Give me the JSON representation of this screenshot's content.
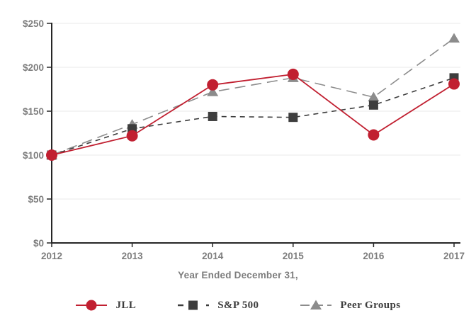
{
  "chart_data": {
    "type": "line",
    "title": "",
    "xlabel": "Year Ended December 31,",
    "ylabel": "",
    "categories": [
      "2012",
      "2013",
      "2014",
      "2015",
      "2016",
      "2017"
    ],
    "series": [
      {
        "name": "JLL",
        "values": [
          100,
          122,
          180,
          192,
          123,
          181
        ],
        "color": "#c12031",
        "marker": "circle",
        "dash": "solid"
      },
      {
        "name": "S&P 500",
        "values": [
          100,
          130,
          144,
          143,
          157,
          188
        ],
        "color": "#3d3d3d",
        "marker": "square",
        "dash": "short-dash"
      },
      {
        "name": "Peer Groups",
        "values": [
          100,
          135,
          172,
          188,
          166,
          233
        ],
        "color": "#8c8c8c",
        "marker": "triangle",
        "dash": "long-dash"
      }
    ],
    "ylim": [
      0,
      250
    ],
    "y_ticks": [
      0,
      50,
      100,
      150,
      200,
      250
    ],
    "y_tick_prefix": "$",
    "y_tick_labels": [
      "$0",
      "$50",
      "$100",
      "$150",
      "$200",
      "$250"
    ],
    "grid": "horizontal-light",
    "legend_position": "bottom"
  },
  "style": {
    "axis_color": "#262626",
    "grid_color": "#e9e9e9",
    "tick_label_color": "#7d7d7d",
    "legend_text_color": "#3d3d3d",
    "background": "#ffffff"
  }
}
